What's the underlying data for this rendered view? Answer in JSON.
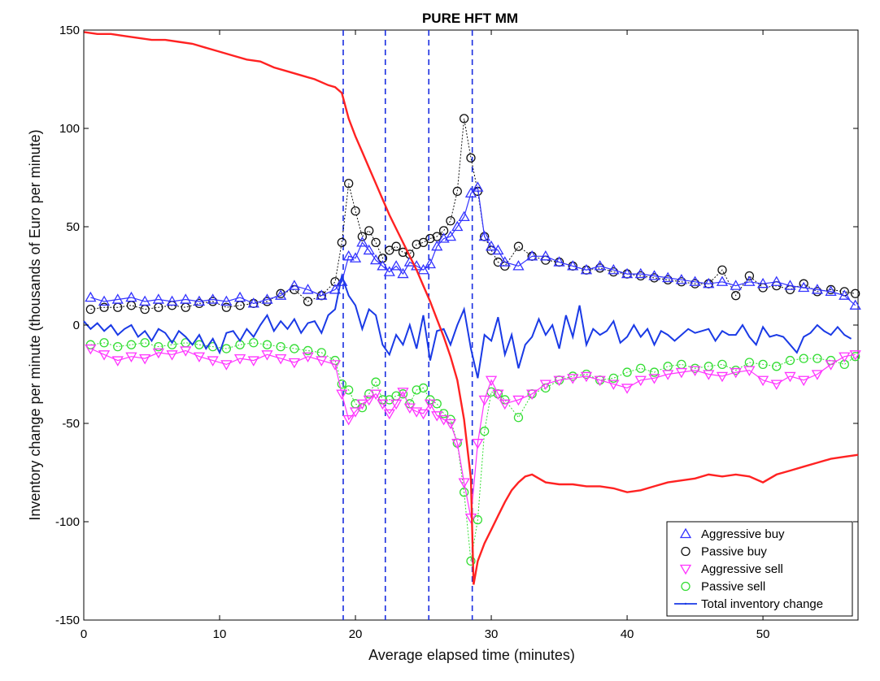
{
  "chart_data": {
    "type": "line",
    "title": "PURE HFT MM",
    "xlabel": "Average elapsed time (minutes)",
    "ylabel": "Inventory change per minute (thousands of Euro per minute)",
    "xlim": [
      0,
      57
    ],
    "ylim": [
      -150,
      150
    ],
    "x_ticks": [
      0,
      10,
      20,
      30,
      40,
      50
    ],
    "y_ticks": [
      -150,
      -100,
      -50,
      0,
      50,
      100,
      150
    ],
    "grid": false,
    "legend_position": "bottom-right",
    "vertical_markers": [
      19.1,
      22.2,
      25.4,
      28.6
    ],
    "series": [
      {
        "name": "Aggressive buy",
        "color": "#3333ff",
        "marker": "triangle-up",
        "x": [
          0.5,
          1.5,
          2.5,
          3.5,
          4.5,
          5.5,
          6.5,
          7.5,
          8.5,
          9.5,
          10.5,
          11.5,
          12.5,
          13.5,
          14.5,
          15.5,
          16.5,
          17.5,
          18.5,
          19.0,
          19.5,
          20.0,
          20.5,
          21.0,
          21.5,
          22.0,
          22.5,
          23.0,
          23.5,
          24.0,
          24.5,
          25.0,
          25.5,
          26.0,
          26.5,
          27.0,
          27.5,
          28.0,
          28.5,
          29.0,
          29.5,
          30.0,
          30.5,
          31.0,
          32.0,
          33.0,
          34.0,
          35.0,
          36.0,
          37.0,
          38.0,
          39.0,
          40.0,
          41.0,
          42.0,
          43.0,
          44.0,
          45.0,
          46.0,
          47.0,
          48.0,
          49.0,
          50.0,
          51.0,
          52.0,
          53.0,
          54.0,
          55.0,
          56.0,
          56.8
        ],
        "y": [
          14,
          12,
          13,
          14,
          12,
          13,
          12,
          13,
          12,
          13,
          12,
          14,
          11,
          13,
          15,
          20,
          18,
          15,
          18,
          22,
          35,
          34,
          42,
          38,
          33,
          30,
          27,
          30,
          26,
          32,
          30,
          28,
          31,
          40,
          44,
          45,
          50,
          55,
          67,
          70,
          45,
          40,
          38,
          32,
          30,
          35,
          35,
          32,
          30,
          28,
          30,
          28,
          26,
          26,
          25,
          24,
          23,
          22,
          21,
          22,
          20,
          22,
          21,
          22,
          20,
          19,
          18,
          17,
          15,
          10
        ]
      },
      {
        "name": "Passive buy",
        "color": "#111111",
        "marker": "circle",
        "x": [
          0.5,
          1.5,
          2.5,
          3.5,
          4.5,
          5.5,
          6.5,
          7.5,
          8.5,
          9.5,
          10.5,
          11.5,
          12.5,
          13.5,
          14.5,
          15.5,
          16.5,
          17.5,
          18.5,
          19.0,
          19.5,
          20.0,
          20.5,
          21.0,
          21.5,
          22.0,
          22.5,
          23.0,
          23.5,
          24.0,
          24.5,
          25.0,
          25.5,
          26.0,
          26.5,
          27.0,
          27.5,
          28.0,
          28.5,
          29.0,
          29.5,
          30.0,
          30.5,
          31.0,
          32.0,
          33.0,
          34.0,
          35.0,
          36.0,
          37.0,
          38.0,
          39.0,
          40.0,
          41.0,
          42.0,
          43.0,
          44.0,
          45.0,
          46.0,
          47.0,
          48.0,
          49.0,
          50.0,
          51.0,
          52.0,
          53.0,
          54.0,
          55.0,
          56.0,
          56.8
        ],
        "y": [
          8,
          9,
          9,
          10,
          8,
          9,
          10,
          9,
          11,
          12,
          9,
          10,
          11,
          12,
          16,
          18,
          12,
          15,
          22,
          42,
          72,
          58,
          45,
          48,
          42,
          34,
          38,
          40,
          37,
          36,
          41,
          42,
          44,
          45,
          48,
          53,
          68,
          105,
          85,
          68,
          45,
          38,
          32,
          30,
          40,
          35,
          33,
          32,
          30,
          28,
          29,
          27,
          26,
          25,
          24,
          23,
          22,
          21,
          21,
          28,
          15,
          25,
          19,
          20,
          18,
          21,
          17,
          18,
          17,
          16
        ]
      },
      {
        "name": "Aggressive sell",
        "color": "#ff33ff",
        "marker": "triangle-down",
        "x": [
          0.5,
          1.5,
          2.5,
          3.5,
          4.5,
          5.5,
          6.5,
          7.5,
          8.5,
          9.5,
          10.5,
          11.5,
          12.5,
          13.5,
          14.5,
          15.5,
          16.5,
          17.5,
          18.5,
          19.0,
          19.5,
          20.0,
          20.5,
          21.0,
          21.5,
          22.0,
          22.5,
          23.0,
          23.5,
          24.0,
          24.5,
          25.0,
          25.5,
          26.0,
          26.5,
          27.0,
          27.5,
          28.0,
          28.5,
          29.0,
          29.5,
          30.0,
          30.5,
          31.0,
          32.0,
          33.0,
          34.0,
          35.0,
          36.0,
          37.0,
          38.0,
          39.0,
          40.0,
          41.0,
          42.0,
          43.0,
          44.0,
          45.0,
          46.0,
          47.0,
          48.0,
          49.0,
          50.0,
          51.0,
          52.0,
          53.0,
          54.0,
          55.0,
          56.0,
          56.8
        ],
        "y": [
          -12,
          -15,
          -18,
          -16,
          -17,
          -14,
          -15,
          -13,
          -16,
          -18,
          -20,
          -17,
          -18,
          -15,
          -17,
          -19,
          -16,
          -18,
          -20,
          -35,
          -48,
          -44,
          -40,
          -38,
          -35,
          -40,
          -45,
          -40,
          -34,
          -42,
          -44,
          -45,
          -40,
          -46,
          -48,
          -50,
          -60,
          -80,
          -98,
          -60,
          -38,
          -28,
          -35,
          -40,
          -38,
          -35,
          -30,
          -28,
          -27,
          -26,
          -28,
          -30,
          -32,
          -28,
          -27,
          -25,
          -24,
          -23,
          -25,
          -26,
          -24,
          -23,
          -28,
          -30,
          -26,
          -28,
          -25,
          -20,
          -16,
          -15
        ]
      },
      {
        "name": "Passive sell",
        "color": "#33dd33",
        "marker": "circle",
        "x": [
          0.5,
          1.5,
          2.5,
          3.5,
          4.5,
          5.5,
          6.5,
          7.5,
          8.5,
          9.5,
          10.5,
          11.5,
          12.5,
          13.5,
          14.5,
          15.5,
          16.5,
          17.5,
          18.5,
          19.0,
          19.5,
          20.0,
          20.5,
          21.0,
          21.5,
          22.0,
          22.5,
          23.0,
          23.5,
          24.0,
          24.5,
          25.0,
          25.5,
          26.0,
          26.5,
          27.0,
          27.5,
          28.0,
          28.5,
          29.0,
          29.5,
          30.0,
          30.5,
          31.0,
          32.0,
          33.0,
          34.0,
          35.0,
          36.0,
          37.0,
          38.0,
          39.0,
          40.0,
          41.0,
          42.0,
          43.0,
          44.0,
          45.0,
          46.0,
          47.0,
          48.0,
          49.0,
          50.0,
          51.0,
          52.0,
          53.0,
          54.0,
          55.0,
          56.0,
          56.8
        ],
        "y": [
          -10,
          -9,
          -11,
          -10,
          -9,
          -11,
          -10,
          -9,
          -10,
          -11,
          -12,
          -10,
          -9,
          -10,
          -11,
          -12,
          -13,
          -14,
          -18,
          -30,
          -33,
          -40,
          -42,
          -35,
          -29,
          -38,
          -38,
          -36,
          -35,
          -40,
          -33,
          -32,
          -38,
          -40,
          -45,
          -48,
          -60,
          -85,
          -120,
          -99,
          -54,
          -34,
          -35,
          -38,
          -47,
          -35,
          -32,
          -28,
          -26,
          -25,
          -28,
          -27,
          -24,
          -22,
          -24,
          -21,
          -20,
          -22,
          -21,
          -20,
          -23,
          -19,
          -20,
          -21,
          -18,
          -17,
          -17,
          -18,
          -20,
          -16
        ]
      },
      {
        "name": "Total inventory change",
        "color": "#1a3ae6",
        "marker": "dot",
        "x": [
          0,
          0.5,
          1,
          1.5,
          2,
          2.5,
          3,
          3.5,
          4,
          4.5,
          5,
          5.5,
          6,
          6.5,
          7,
          7.5,
          8,
          8.5,
          9,
          9.5,
          10,
          10.5,
          11,
          11.5,
          12,
          12.5,
          13,
          13.5,
          14,
          14.5,
          15,
          15.5,
          16,
          16.5,
          17,
          17.5,
          18,
          18.5,
          19,
          19.5,
          20,
          20.5,
          21,
          21.5,
          22,
          22.5,
          23,
          23.5,
          24,
          24.5,
          25,
          25.5,
          26,
          26.5,
          27,
          27.5,
          28,
          28.5,
          29,
          29.5,
          30,
          30.5,
          31,
          31.5,
          32,
          32.5,
          33,
          33.5,
          34,
          34.5,
          35,
          35.5,
          36,
          36.5,
          37,
          37.5,
          38,
          38.5,
          39,
          39.5,
          40,
          40.5,
          41,
          41.5,
          42,
          42.5,
          43,
          43.5,
          44,
          44.5,
          45,
          45.5,
          46,
          46.5,
          47,
          47.5,
          48,
          48.5,
          49,
          49.5,
          50,
          50.5,
          51,
          51.5,
          52,
          52.5,
          53,
          53.5,
          54,
          54.5,
          55,
          55.5,
          56,
          56.5
        ],
        "y": [
          2,
          -2,
          1,
          -3,
          0,
          -5,
          -2,
          0,
          -6,
          -3,
          -8,
          -2,
          -4,
          -9,
          -3,
          -6,
          -10,
          -5,
          -12,
          -7,
          -14,
          -4,
          -3,
          -8,
          -2,
          -6,
          0,
          5,
          -3,
          2,
          -2,
          3,
          -4,
          1,
          2,
          -4,
          5,
          8,
          25,
          15,
          10,
          -2,
          8,
          5,
          -10,
          -15,
          -5,
          -10,
          0,
          -12,
          5,
          -18,
          -3,
          -2,
          -10,
          0,
          8,
          -12,
          -27,
          -5,
          -8,
          4,
          -15,
          -5,
          -22,
          -10,
          -6,
          3,
          -5,
          0,
          -12,
          5,
          -6,
          10,
          -10,
          -2,
          -5,
          -3,
          2,
          -9,
          -6,
          0,
          -6,
          -2,
          -10,
          -3,
          -5,
          -8,
          -5,
          -2,
          -4,
          -3,
          -2,
          -8,
          -3,
          -5,
          -5,
          0,
          -6,
          -10,
          -1,
          -6,
          -5,
          -6,
          -10,
          -14,
          -6,
          -4,
          0,
          -3,
          -5,
          -1,
          -5,
          -7
        ]
      },
      {
        "name": "",
        "color": "#ff2222",
        "marker": "none",
        "x": [
          0,
          1,
          2,
          3,
          4,
          5,
          6,
          7,
          8,
          9,
          10,
          11,
          12,
          13,
          14,
          15,
          16,
          17,
          18,
          18.5,
          19,
          19.5,
          20,
          20.5,
          21,
          21.5,
          22,
          22.5,
          23,
          23.5,
          24,
          24.5,
          25,
          25.5,
          26,
          26.5,
          27,
          27.5,
          28,
          28.5,
          28.7,
          29,
          29.5,
          30,
          30.5,
          31,
          31.5,
          32,
          32.5,
          33,
          34,
          35,
          36,
          37,
          38,
          39,
          40,
          41,
          42,
          43,
          44,
          45,
          46,
          47,
          48,
          49,
          50,
          51,
          52,
          53,
          54,
          55,
          56,
          57
        ],
        "y": [
          149,
          148,
          148,
          147,
          146,
          145,
          145,
          144,
          143,
          141,
          139,
          137,
          135,
          134,
          131,
          129,
          127,
          125,
          122,
          121,
          118,
          105,
          96,
          88,
          80,
          72,
          64,
          56,
          49,
          42,
          35,
          28,
          20,
          12,
          3,
          -6,
          -16,
          -28,
          -48,
          -78,
          -132,
          -120,
          -111,
          -104,
          -97,
          -90,
          -84,
          -80,
          -77,
          -76,
          -80,
          -81,
          -81,
          -82,
          -82,
          -83,
          -85,
          -84,
          -82,
          -80,
          -79,
          -78,
          -76,
          -77,
          -76,
          -77,
          -80,
          -76,
          -74,
          -72,
          -70,
          -68,
          -67,
          -66
        ]
      }
    ]
  }
}
